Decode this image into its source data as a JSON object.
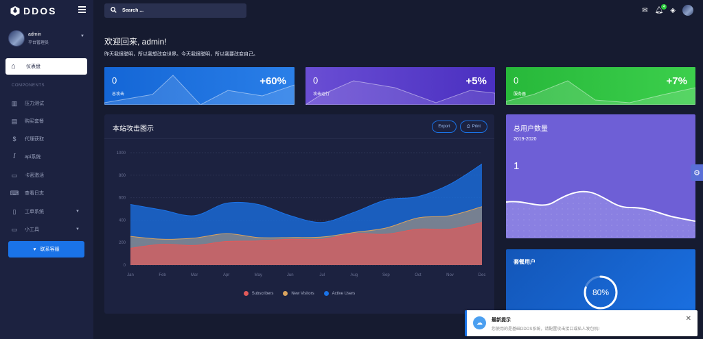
{
  "brand": {
    "name": "DDOS"
  },
  "user": {
    "name": "admin",
    "role": "平台管理员"
  },
  "sidebar": {
    "active": {
      "label": "仪表盘",
      "icon": "home-icon"
    },
    "section_title": "COMPONENTS",
    "items": [
      {
        "label": "压力测试",
        "icon": "bar-chart-icon",
        "has_caret": false
      },
      {
        "label": "购买套餐",
        "icon": "store-icon",
        "has_caret": false
      },
      {
        "label": "代理获取",
        "icon": "proxy-icon",
        "has_caret": false
      },
      {
        "label": "api系统",
        "icon": "italic-i-icon",
        "has_caret": false
      },
      {
        "label": "卡密激活",
        "icon": "card-icon",
        "has_caret": false
      },
      {
        "label": "查看日志",
        "icon": "keyboard-icon",
        "has_caret": false
      },
      {
        "label": "工单系统",
        "icon": "tablet-icon",
        "has_caret": true
      },
      {
        "label": "小工具",
        "icon": "monitor-icon",
        "has_caret": true
      }
    ],
    "contact_label": "联系客服"
  },
  "search": {
    "placeholder": "Search ..."
  },
  "topbar": {
    "notification_count": "4"
  },
  "welcome": {
    "title": "欢迎回来, admin!",
    "subtitle": "昨天我很聪明，所以我想改变世界。今天我很聪明，所以我要改变自己。"
  },
  "stats": [
    {
      "value": "0",
      "label": "总攻击",
      "percent": "+60%",
      "color": "#1a73e8"
    },
    {
      "value": "0",
      "label": "攻击运行",
      "percent": "+5%",
      "color": "#6c4fd6"
    },
    {
      "value": "0",
      "label": "服务器",
      "percent": "+7%",
      "color": "#2ebd3f"
    }
  ],
  "chart_panel": {
    "title": "本站攻击图示",
    "export_label": "Export",
    "print_label": "Print"
  },
  "chart_data": {
    "type": "area",
    "categories": [
      "Jan",
      "Feb",
      "Mar",
      "Apr",
      "May",
      "Jun",
      "Jul",
      "Aug",
      "Sep",
      "Oct",
      "Nov",
      "Dec"
    ],
    "yticks": [
      0,
      200,
      400,
      600,
      800,
      1000
    ],
    "ylim": [
      0,
      1000
    ],
    "series": [
      {
        "name": "Subscribers",
        "color": "#e15a5a",
        "values": [
          150,
          185,
          175,
          210,
          215,
          230,
          230,
          280,
          275,
          320,
          320,
          380
        ]
      },
      {
        "name": "New Visitors",
        "color": "#d9a35e",
        "values": [
          255,
          230,
          240,
          280,
          245,
          245,
          250,
          290,
          330,
          420,
          440,
          520
        ]
      },
      {
        "name": "Active Users",
        "color": "#1a73e8",
        "values": [
          540,
          490,
          440,
          550,
          540,
          440,
          380,
          470,
          580,
          610,
          720,
          900
        ]
      }
    ]
  },
  "users_card": {
    "title": "总用户数量",
    "period": "2019-2020",
    "value": "1"
  },
  "plan_card": {
    "title": "套餐用户",
    "percent": "80%",
    "fraction": 0.8
  },
  "toast": {
    "title": "最新提示",
    "body": "您使用的是基础DDOS系统，请配置攻击接口或私人发包机!"
  }
}
